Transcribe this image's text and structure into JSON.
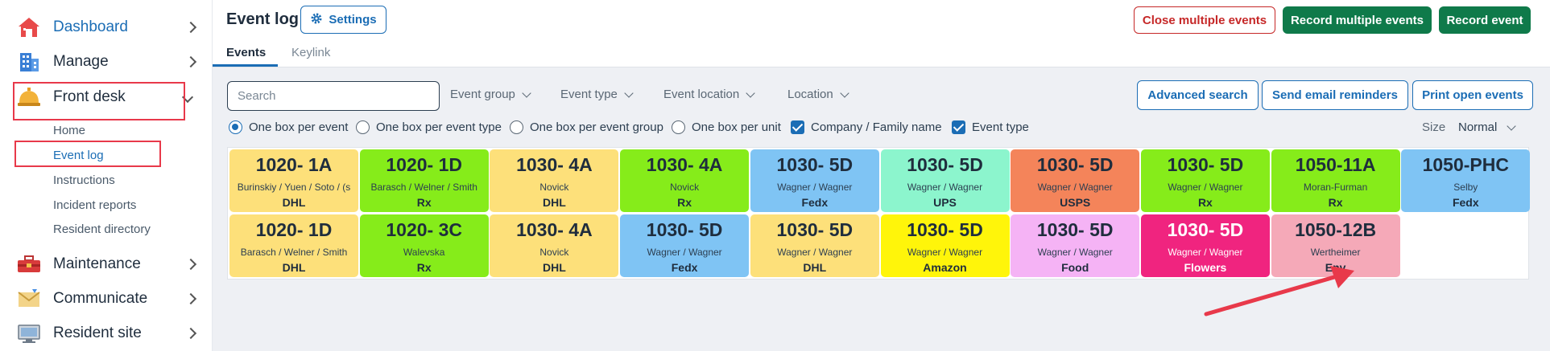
{
  "sidebar": {
    "items": [
      {
        "label": "Dashboard",
        "icon": "house-icon"
      },
      {
        "label": "Manage",
        "icon": "building-icon"
      },
      {
        "label": "Front desk",
        "icon": "bell-icon"
      },
      {
        "label": "Maintenance",
        "icon": "toolbox-icon"
      },
      {
        "label": "Communicate",
        "icon": "envelope-icon"
      },
      {
        "label": "Resident site",
        "icon": "monitor-icon"
      }
    ],
    "front_desk_sub": [
      "Home",
      "Event log",
      "Instructions",
      "Incident reports",
      "Resident directory"
    ]
  },
  "header": {
    "title": "Event log",
    "settings_label": "Settings",
    "close_multiple": "Close multiple events",
    "record_multiple": "Record multiple events",
    "record_event": "Record event"
  },
  "tabs": [
    "Events",
    "Keylink"
  ],
  "filters": {
    "search_placeholder": "Search",
    "dropdowns": [
      "Event group",
      "Event type",
      "Event location",
      "Location"
    ],
    "advanced_search": "Advanced search",
    "send_reminders": "Send email reminders",
    "print_open": "Print open events"
  },
  "options": {
    "radios": [
      "One box per event",
      "One box per event type",
      "One box per event group",
      "One box per unit"
    ],
    "checkboxes": [
      "Company / Family name",
      "Event type"
    ],
    "size_label": "Size",
    "size_value": "Normal"
  },
  "colors": {
    "accent": "#1b6db5",
    "green": "#0f7a4a",
    "red": "#c62828",
    "annotation": "#e8394a"
  },
  "cards": [
    {
      "unit": "1020- 1A",
      "names": "Burinskiy / Yuen / Soto / (s",
      "type": "DHL",
      "color": "#fde07a"
    },
    {
      "unit": "1020- 1D",
      "names": "Barasch / Welner / Smith",
      "type": "Rx",
      "color": "#86ec1a"
    },
    {
      "unit": "1030- 4A",
      "names": "Novick",
      "type": "DHL",
      "color": "#fde07a"
    },
    {
      "unit": "1030- 4A",
      "names": "Novick",
      "type": "Rx",
      "color": "#86ec1a"
    },
    {
      "unit": "1030- 5D",
      "names": "Wagner / Wagner",
      "type": "Fedx",
      "color": "#7fc4f4"
    },
    {
      "unit": "1030- 5D",
      "names": "Wagner / Wagner",
      "type": "UPS",
      "color": "#8cf5cd"
    },
    {
      "unit": "1030- 5D",
      "names": "Wagner / Wagner",
      "type": "USPS",
      "color": "#f4845a"
    },
    {
      "unit": "1030- 5D",
      "names": "Wagner / Wagner",
      "type": "Rx",
      "color": "#86ec1a"
    },
    {
      "unit": "1050-11A",
      "names": "Moran-Furman",
      "type": "Rx",
      "color": "#86ec1a"
    },
    {
      "unit": "1050-PHC",
      "names": "Selby",
      "type": "Fedx",
      "color": "#7fc4f4"
    },
    {
      "unit": "1020- 1D",
      "names": "Barasch / Welner / Smith",
      "type": "DHL",
      "color": "#fde07a"
    },
    {
      "unit": "1020- 3C",
      "names": "Walevska",
      "type": "Rx",
      "color": "#86ec1a"
    },
    {
      "unit": "1030- 4A",
      "names": "Novick",
      "type": "DHL",
      "color": "#fde07a"
    },
    {
      "unit": "1030- 5D",
      "names": "Wagner / Wagner",
      "type": "Fedx",
      "color": "#7fc4f4"
    },
    {
      "unit": "1030- 5D",
      "names": "Wagner / Wagner",
      "type": "DHL",
      "color": "#fde07a"
    },
    {
      "unit": "1030- 5D",
      "names": "Wagner / Wagner",
      "type": "Amazon",
      "color": "#fff50a"
    },
    {
      "unit": "1030- 5D",
      "names": "Wagner / Wagner",
      "type": "Food",
      "color": "#f5b3f5"
    },
    {
      "unit": "1030- 5D",
      "names": "Wagner / Wagner",
      "type": "Flowers",
      "color": "#f0247f"
    },
    {
      "unit": "1050-12B",
      "names": "Wertheimer",
      "type": "Env",
      "color": "#f5a9b8"
    }
  ]
}
